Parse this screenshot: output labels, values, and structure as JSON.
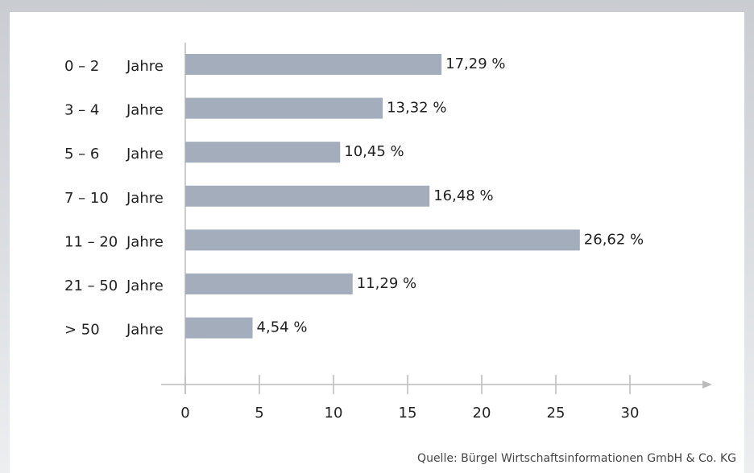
{
  "chart_data": {
    "type": "bar",
    "orientation": "horizontal",
    "categories": [
      "0 – 2",
      "3 – 4",
      "5 – 6",
      "7 – 10",
      "11 – 20",
      "21 – 50",
      "> 50"
    ],
    "category_unit": "Jahre",
    "values": [
      17.29,
      13.32,
      10.45,
      16.48,
      26.62,
      11.29,
      4.54
    ],
    "value_labels": [
      "17,29 %",
      "13,32 %",
      "10,45 %",
      "16,48 %",
      "26,62 %",
      "11,29 %",
      "4,54 %"
    ],
    "color": "#a3adbb",
    "xlim": [
      0,
      35
    ],
    "xticks": [
      0,
      5,
      10,
      15,
      20,
      25,
      30
    ],
    "source": "Quelle: Bürgel Wirtschaftsinformationen GmbH & Co. KG"
  }
}
